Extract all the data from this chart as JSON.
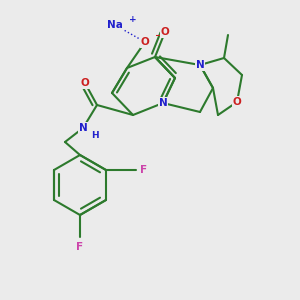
{
  "background_color": "#ebebeb",
  "atom_colors": {
    "C": "#2d7a2d",
    "N": "#2020cc",
    "O": "#cc2020",
    "F": "#cc44aa",
    "Na": "#2020cc",
    "bond": "#2d7a2d"
  },
  "figsize": [
    3.0,
    3.0
  ],
  "dpi": 100
}
